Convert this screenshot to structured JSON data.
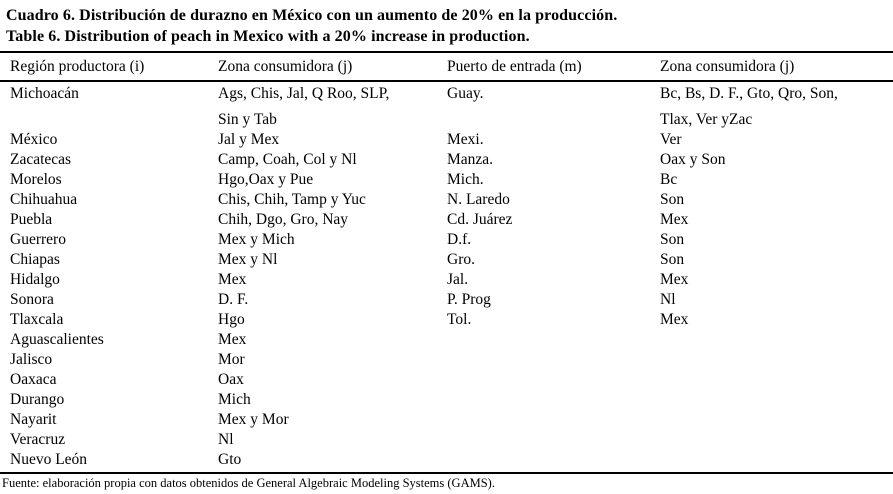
{
  "titles": {
    "es": "Cuadro 6. Distribución de durazno en México con un aumento de 20% en la producción.",
    "en": "Table 6. Distribution of peach in Mexico with a 20% increase in production."
  },
  "table": {
    "headers": [
      "Región productora (i)",
      "Zona consumidora (j)",
      "Puerto de entrada (m)",
      "Zona consumidora (j)"
    ],
    "rows": [
      {
        "cells": [
          "Michoacán",
          "Ags, Chis, Jal, Q Roo, SLP,",
          "Guay.",
          "Bc, Bs, D. F., Gto, Qro, Son,"
        ],
        "continuation": false
      },
      {
        "cells": [
          "",
          "Sin y Tab",
          "",
          "Tlax, Ver yZac"
        ],
        "continuation": true
      },
      {
        "cells": [
          "México",
          "Jal y Mex",
          "Mexi.",
          "Ver"
        ],
        "continuation": false
      },
      {
        "cells": [
          "Zacatecas",
          "Camp, Coah, Col y Nl",
          "Manza.",
          "Oax y Son"
        ],
        "continuation": false
      },
      {
        "cells": [
          "Morelos",
          "Hgo,Oax y Pue",
          "Mich.",
          "Bc"
        ],
        "continuation": false
      },
      {
        "cells": [
          "Chihuahua",
          "Chis, Chih, Tamp y Yuc",
          "N. Laredo",
          "Son"
        ],
        "continuation": false
      },
      {
        "cells": [
          "Puebla",
          "Chih, Dgo, Gro, Nay",
          "Cd. Juárez",
          "Mex"
        ],
        "continuation": false
      },
      {
        "cells": [
          "Guerrero",
          "Mex y Mich",
          "D.f.",
          "Son"
        ],
        "continuation": false
      },
      {
        "cells": [
          "Chiapas",
          "Mex y Nl",
          "Gro.",
          "Son"
        ],
        "continuation": false
      },
      {
        "cells": [
          "Hidalgo",
          "Mex",
          "Jal.",
          "Mex"
        ],
        "continuation": false
      },
      {
        "cells": [
          "Sonora",
          "D. F.",
          "P. Prog",
          "Nl"
        ],
        "continuation": false
      },
      {
        "cells": [
          "Tlaxcala",
          "Hgo",
          "Tol.",
          "Mex"
        ],
        "continuation": false
      },
      {
        "cells": [
          "Aguascalientes",
          "Mex",
          "",
          ""
        ],
        "continuation": false
      },
      {
        "cells": [
          "Jalisco",
          "Mor",
          "",
          ""
        ],
        "continuation": false
      },
      {
        "cells": [
          "Oaxaca",
          "Oax",
          "",
          ""
        ],
        "continuation": false
      },
      {
        "cells": [
          "Durango",
          "Mich",
          "",
          ""
        ],
        "continuation": false
      },
      {
        "cells": [
          "Nayarit",
          "Mex y Mor",
          "",
          ""
        ],
        "continuation": false
      },
      {
        "cells": [
          "Veracruz",
          "Nl",
          "",
          ""
        ],
        "continuation": false
      },
      {
        "cells": [
          "Nuevo León",
          "Gto",
          "",
          ""
        ],
        "continuation": false
      }
    ]
  },
  "footnote": "Fuente: elaboración propia con datos obtenidos de General Algebraic Modeling Systems (GAMS).",
  "colors": {
    "text": "#000000",
    "background": "#ffffff",
    "rule": "#000000"
  }
}
